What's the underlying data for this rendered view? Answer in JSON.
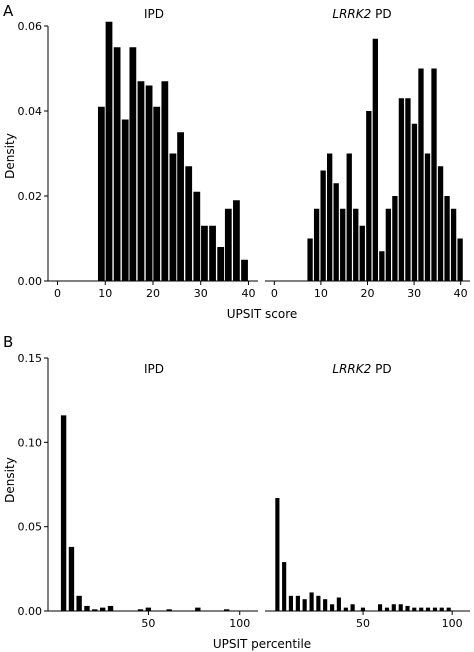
{
  "chart_data": [
    {
      "type": "bar",
      "panel_label": "A",
      "ylabel": "Density",
      "xlabel": "UPSIT score",
      "ylim": [
        0,
        0.06
      ],
      "yticks": [
        0.0,
        0.02,
        0.04,
        0.06
      ],
      "ytick_labels": [
        "0.00",
        "0.02",
        "0.04",
        "0.06"
      ],
      "facets": [
        {
          "title": "IPD",
          "title_italic": false,
          "xlim": [
            -2,
            42
          ],
          "xticks": [
            "0",
            "10",
            "20",
            "30",
            "40"
          ],
          "bin_width": 1.67,
          "bins": [
            {
              "x": 9.2,
              "y": 0.041
            },
            {
              "x": 10.8,
              "y": 0.061
            },
            {
              "x": 12.5,
              "y": 0.055
            },
            {
              "x": 14.2,
              "y": 0.038
            },
            {
              "x": 15.8,
              "y": 0.055
            },
            {
              "x": 17.5,
              "y": 0.047
            },
            {
              "x": 19.2,
              "y": 0.046
            },
            {
              "x": 20.8,
              "y": 0.041
            },
            {
              "x": 22.5,
              "y": 0.047
            },
            {
              "x": 24.2,
              "y": 0.03
            },
            {
              "x": 25.8,
              "y": 0.035
            },
            {
              "x": 27.5,
              "y": 0.027
            },
            {
              "x": 29.2,
              "y": 0.021
            },
            {
              "x": 30.8,
              "y": 0.013
            },
            {
              "x": 32.5,
              "y": 0.013
            },
            {
              "x": 34.2,
              "y": 0.008
            },
            {
              "x": 35.8,
              "y": 0.017
            },
            {
              "x": 37.5,
              "y": 0.019
            },
            {
              "x": 39.2,
              "y": 0.005
            }
          ]
        },
        {
          "title": "LRRK2 PD",
          "title_italic_part": "LRRK2",
          "title_rest": " PD",
          "xlim": [
            -2,
            42
          ],
          "xticks": [
            "0",
            "10",
            "20",
            "30",
            "40"
          ],
          "bin_width": 1.4,
          "bins": [
            {
              "x": 7.7,
              "y": 0.01
            },
            {
              "x": 9.1,
              "y": 0.017
            },
            {
              "x": 10.5,
              "y": 0.026
            },
            {
              "x": 11.9,
              "y": 0.03
            },
            {
              "x": 13.3,
              "y": 0.023
            },
            {
              "x": 14.7,
              "y": 0.017
            },
            {
              "x": 16.1,
              "y": 0.03
            },
            {
              "x": 17.5,
              "y": 0.017
            },
            {
              "x": 18.9,
              "y": 0.013
            },
            {
              "x": 20.3,
              "y": 0.04
            },
            {
              "x": 21.7,
              "y": 0.057
            },
            {
              "x": 23.1,
              "y": 0.007
            },
            {
              "x": 24.5,
              "y": 0.017
            },
            {
              "x": 25.9,
              "y": 0.02
            },
            {
              "x": 27.3,
              "y": 0.043
            },
            {
              "x": 28.7,
              "y": 0.043
            },
            {
              "x": 30.1,
              "y": 0.037
            },
            {
              "x": 31.5,
              "y": 0.05
            },
            {
              "x": 32.9,
              "y": 0.03
            },
            {
              "x": 34.3,
              "y": 0.05
            },
            {
              "x": 35.7,
              "y": 0.027
            },
            {
              "x": 37.1,
              "y": 0.02
            },
            {
              "x": 38.5,
              "y": 0.017
            },
            {
              "x": 39.9,
              "y": 0.01
            }
          ]
        }
      ]
    },
    {
      "type": "bar",
      "panel_label": "B",
      "ylabel": "Density",
      "xlabel": "UPSIT percentile",
      "ylim": [
        0,
        0.15
      ],
      "yticks": [
        0.0,
        0.05,
        0.1,
        0.15
      ],
      "ytick_labels": [
        "0.00",
        "0.05",
        "0.10",
        "0.15"
      ],
      "facets": [
        {
          "title": "IPD",
          "title_italic": false,
          "xlim": [
            -5,
            110
          ],
          "xticks": [
            "50",
            "100"
          ],
          "xtick_values": [
            50,
            100
          ],
          "bin_width": 3.6,
          "bins": [
            {
              "x": 3.6,
              "y": 0.116
            },
            {
              "x": 7.9,
              "y": 0.038
            },
            {
              "x": 12.1,
              "y": 0.009
            },
            {
              "x": 16.4,
              "y": 0.003
            },
            {
              "x": 20.7,
              "y": 0.001
            },
            {
              "x": 25.0,
              "y": 0.002
            },
            {
              "x": 29.3,
              "y": 0.003
            },
            {
              "x": 45.7,
              "y": 0.001
            },
            {
              "x": 50.0,
              "y": 0.002
            },
            {
              "x": 61.4,
              "y": 0.001
            },
            {
              "x": 77.1,
              "y": 0.002
            },
            {
              "x": 92.9,
              "y": 0.001
            }
          ]
        },
        {
          "title": "LRRK2 PD",
          "title_italic_part": "LRRK2",
          "title_rest": " PD",
          "xlim": [
            -5,
            110
          ],
          "xticks": [
            "50",
            "100"
          ],
          "xtick_values": [
            50,
            100
          ],
          "bin_width": 3.0,
          "bins": [
            {
              "x": 2.0,
              "y": 0.067
            },
            {
              "x": 5.8,
              "y": 0.029
            },
            {
              "x": 9.6,
              "y": 0.009
            },
            {
              "x": 13.5,
              "y": 0.009
            },
            {
              "x": 17.3,
              "y": 0.007
            },
            {
              "x": 21.2,
              "y": 0.011
            },
            {
              "x": 25.0,
              "y": 0.009
            },
            {
              "x": 28.8,
              "y": 0.007
            },
            {
              "x": 32.7,
              "y": 0.004
            },
            {
              "x": 36.5,
              "y": 0.008
            },
            {
              "x": 40.4,
              "y": 0.002
            },
            {
              "x": 44.2,
              "y": 0.004
            },
            {
              "x": 50.0,
              "y": 0.002
            },
            {
              "x": 59.6,
              "y": 0.004
            },
            {
              "x": 63.5,
              "y": 0.002
            },
            {
              "x": 67.3,
              "y": 0.004
            },
            {
              "x": 71.2,
              "y": 0.004
            },
            {
              "x": 75.0,
              "y": 0.003
            },
            {
              "x": 78.8,
              "y": 0.002
            },
            {
              "x": 82.7,
              "y": 0.002
            },
            {
              "x": 86.5,
              "y": 0.002
            },
            {
              "x": 90.4,
              "y": 0.002
            },
            {
              "x": 94.2,
              "y": 0.002
            },
            {
              "x": 98.1,
              "y": 0.002
            }
          ]
        }
      ]
    }
  ]
}
